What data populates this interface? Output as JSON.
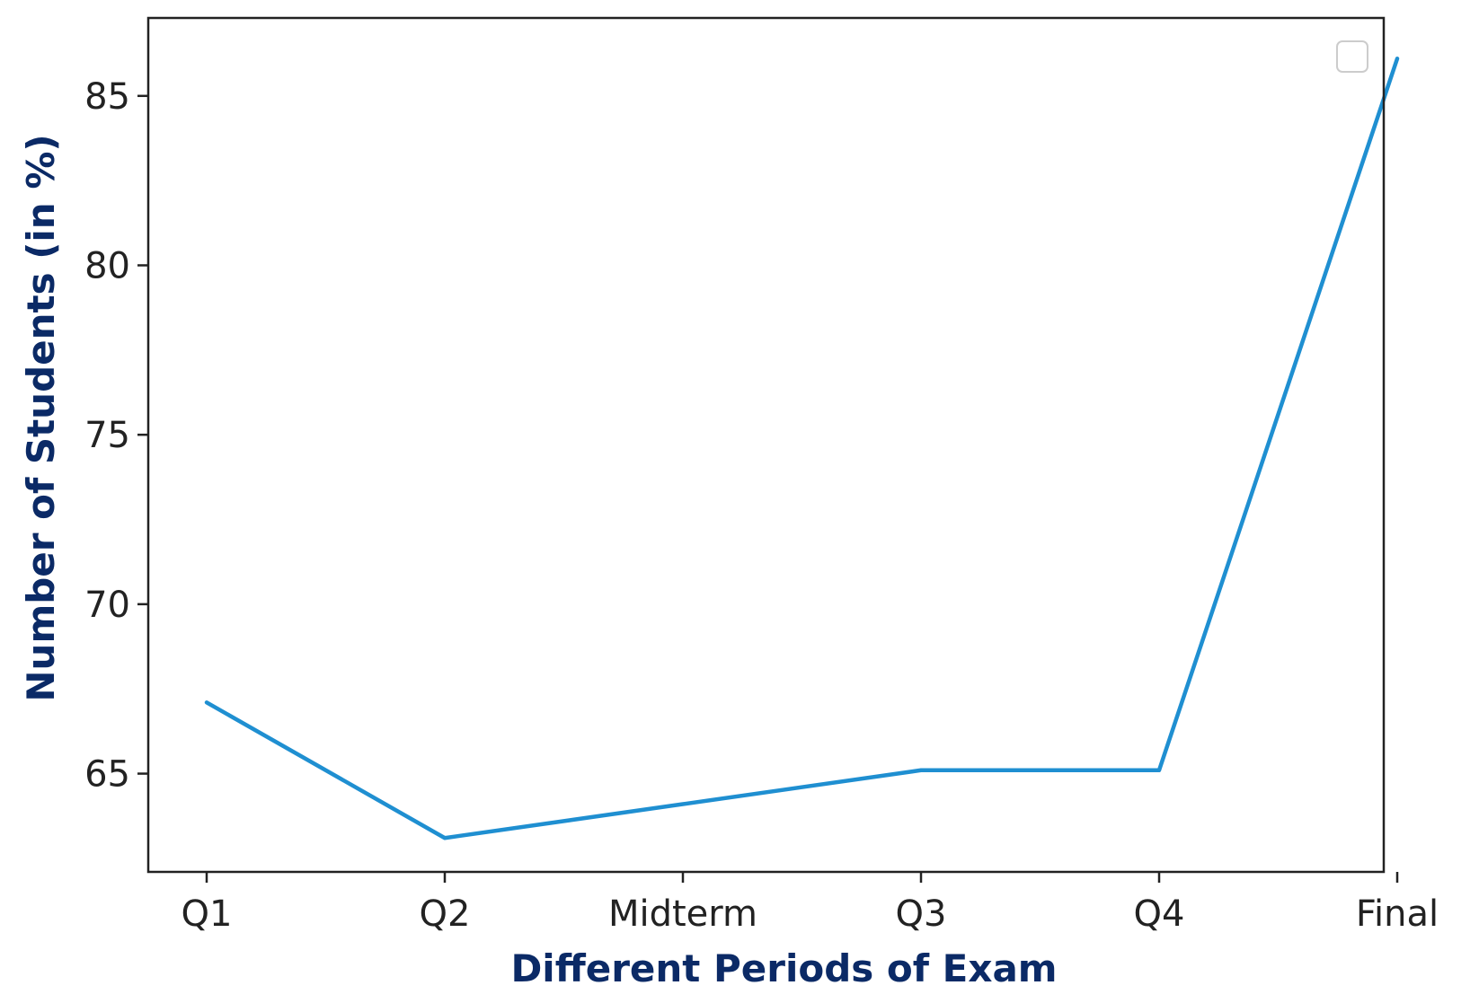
{
  "chart_data": {
    "type": "line",
    "title": "",
    "xlabel": "Different Periods of Exam",
    "ylabel": "Number of Students (in %)",
    "categories": [
      "Q1",
      "Q2",
      "Midterm",
      "Q3",
      "Q4",
      "Final"
    ],
    "series": [
      {
        "values": [
          67.1,
          63.1,
          64.1,
          65.1,
          65.1,
          86.1
        ],
        "color": "#1f8fd1"
      }
    ],
    "yticks": [
      65,
      70,
      75,
      80,
      85
    ],
    "ylim": [
      62.1,
      87.3
    ],
    "grid": false,
    "legend": {
      "placement": "top-right",
      "entries": []
    },
    "colors": {
      "line": "#1f8fd1",
      "axis": "#222222",
      "axis_label": "#0b2a66"
    }
  }
}
